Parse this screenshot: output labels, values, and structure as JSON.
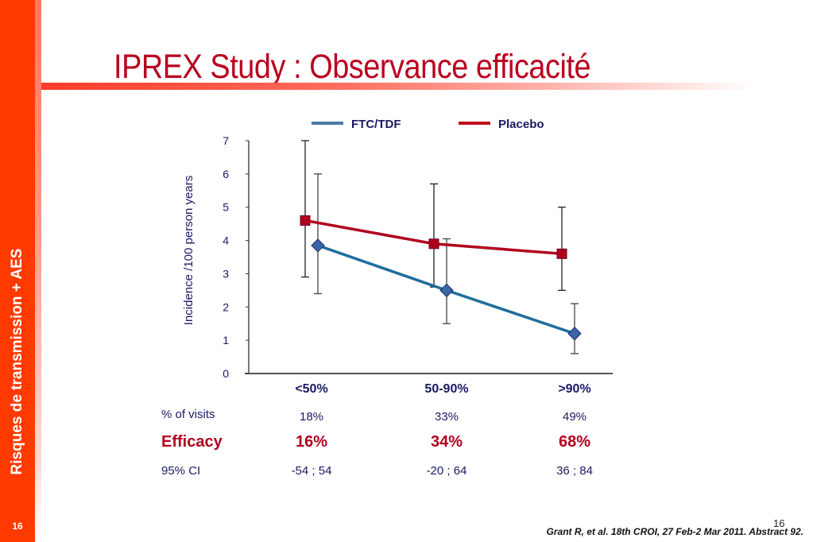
{
  "sidebar": {
    "title": "Risques de transmission + AES",
    "page_number": "16"
  },
  "slide": {
    "title": "IPREX Study : Observance efficacité",
    "page_number": "16",
    "citation": "Grant R, et al. 18th CROI, 27 Feb-2 Mar 2011. Abstract 92."
  },
  "colors": {
    "sidebar": "#ff3a00",
    "title": "#b8001f",
    "ftc_tdf": "#1f6e9e",
    "ftc_tdf_marker": "#3a66a8",
    "placebo": "#b0001e",
    "text": "#1a1a66"
  },
  "chart_data": {
    "type": "line",
    "title": "",
    "xlabel": "",
    "ylabel": "Incidence /100 person years",
    "ylim": [
      0,
      7
    ],
    "yticks": [
      0,
      1,
      2,
      3,
      4,
      5,
      6,
      7
    ],
    "grid": false,
    "legend": "top",
    "categories": [
      "<50%",
      "50-90%",
      ">90%"
    ],
    "series": [
      {
        "name": "FTC/TDF",
        "marker": "diamond",
        "values": [
          3.85,
          2.5,
          1.2
        ],
        "error_low": [
          2.4,
          1.5,
          0.6
        ],
        "error_high": [
          6.0,
          4.05,
          2.1
        ]
      },
      {
        "name": "Placebo",
        "marker": "square",
        "values": [
          4.6,
          3.9,
          3.6
        ],
        "error_low": [
          2.9,
          2.6,
          2.5
        ],
        "error_high": [
          7.0,
          5.7,
          5.0
        ]
      }
    ]
  },
  "table": {
    "rows": [
      {
        "label": "% of visits",
        "values": [
          "18%",
          "33%",
          "49%"
        ]
      },
      {
        "label": "Efficacy",
        "values": [
          "16%",
          "34%",
          "68%"
        ]
      },
      {
        "label": "95% CI",
        "values": [
          "-54 ; 54",
          "-20 ; 64",
          "36 ; 84"
        ]
      }
    ]
  }
}
